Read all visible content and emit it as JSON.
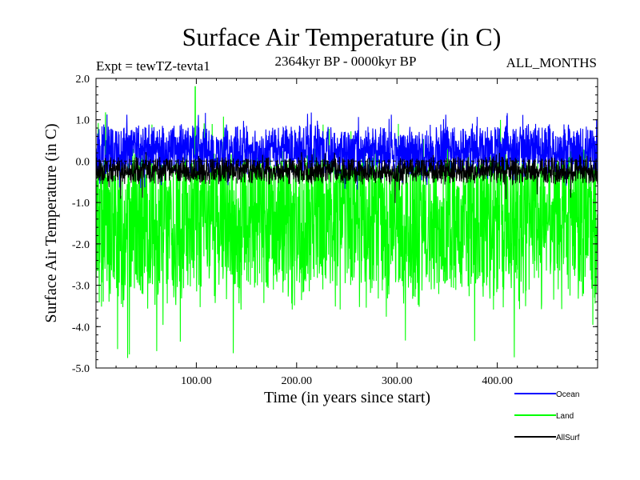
{
  "chart_data": {
    "type": "line",
    "title": "Surface Air Temperature (in C)",
    "subtitle_left": "Expt = tewTZ-tevta1",
    "subtitle_center": "2364kyr BP - 0000kyr BP",
    "subtitle_right": "ALL_MONTHS",
    "xlabel": "Time (in years since start)",
    "ylabel": "Surface Air Temperature (in C)",
    "xlim": [
      0,
      500
    ],
    "ylim": [
      -5.0,
      2.0
    ],
    "x_ticks": [
      100,
      200,
      300,
      400
    ],
    "x_tick_labels": [
      "100.00",
      "200.00",
      "300.00",
      "400.00"
    ],
    "y_ticks": [
      2.0,
      1.0,
      0.0,
      -1.0,
      -2.0,
      -3.0,
      -4.0,
      -5.0
    ],
    "y_tick_labels": [
      "2.0",
      "1.0",
      "0.0",
      "-1.0",
      "-2.0",
      "-3.0",
      "-4.0",
      "-5.0"
    ],
    "zero_line": 0.0,
    "series": [
      {
        "name": "Land",
        "color": "#00ff00",
        "mean": -1.5,
        "typical_min": -3.6,
        "typical_max": 0.3,
        "extreme_min": -4.8,
        "extreme_max": 1.8,
        "extreme_max_at_x": 99,
        "points": 2000,
        "seed": 7
      },
      {
        "name": "Ocean",
        "color": "#0000ff",
        "mean": 0.25,
        "typical_min": -0.3,
        "typical_max": 0.9,
        "extreme_min": -0.7,
        "extreme_max": 1.4,
        "points": 2000,
        "seed": 13
      },
      {
        "name": "AllSurf",
        "color": "#000000",
        "mean": -0.25,
        "typical_min": -0.5,
        "typical_max": 0.1,
        "extreme_min": -1.2,
        "extreme_max": 0.3,
        "points": 2000,
        "seed": 29
      }
    ],
    "legend": [
      {
        "label": "Ocean",
        "color": "#0000ff"
      },
      {
        "label": "Land",
        "color": "#00ff00"
      },
      {
        "label": "AllSurf",
        "color": "#000000"
      }
    ]
  }
}
